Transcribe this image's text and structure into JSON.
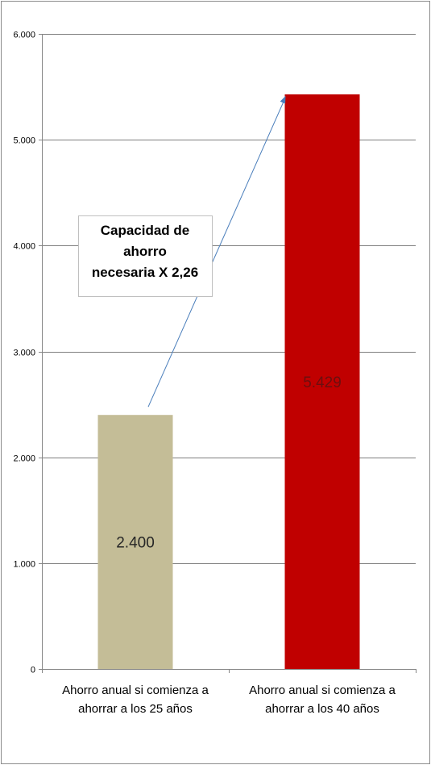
{
  "chart_data": {
    "type": "bar",
    "categories": [
      [
        "Ahorro anual si comienza a",
        "ahorrar a los 25 años"
      ],
      [
        "Ahorro anual si comienza a",
        "ahorrar a los 40 años"
      ]
    ],
    "values": [
      2400,
      5429
    ],
    "value_labels": [
      "2.400",
      "5.429"
    ],
    "bar_colors": [
      "#c4bd97",
      "#c00000"
    ],
    "value_label_colors": [
      "#262626",
      "#6b0f0f"
    ],
    "ylim": [
      0,
      6000
    ],
    "yticks": [
      0,
      1000,
      2000,
      3000,
      4000,
      5000,
      6000
    ],
    "ytick_labels": [
      "0",
      "1.000",
      "2.000",
      "3.000",
      "4.000",
      "5.000",
      "6.000"
    ],
    "grid": true,
    "grid_color": "#7f7f7f",
    "arrow_color": "#4a7ebb",
    "annotation": {
      "lines": [
        "Capacidad de",
        "ahorro",
        "necesaria X 2,26"
      ]
    }
  }
}
